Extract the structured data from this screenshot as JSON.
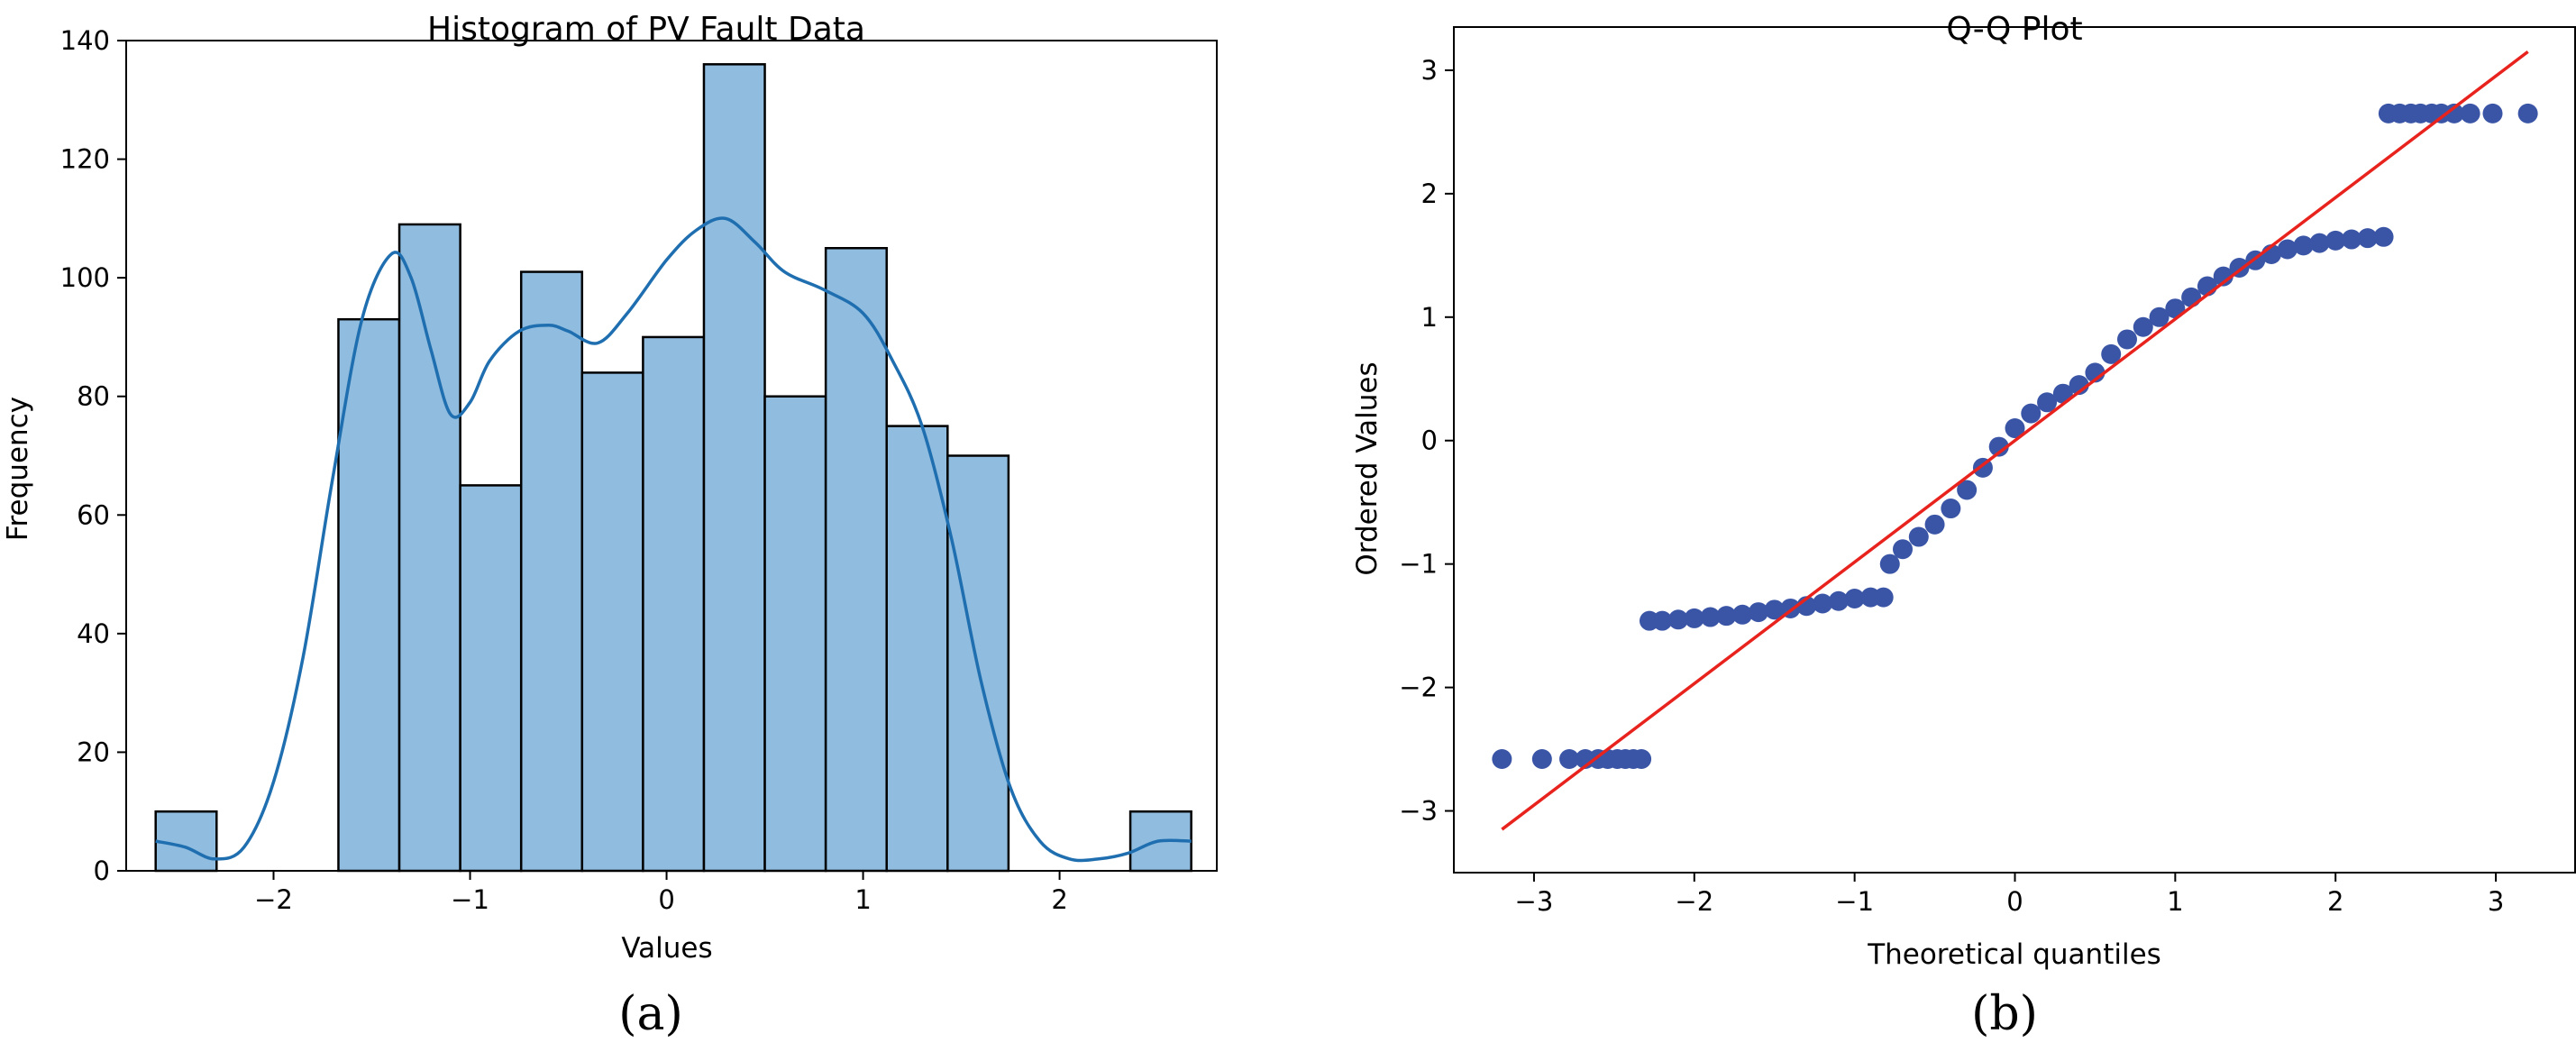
{
  "chart_data": [
    {
      "type": "bar",
      "panel_label": "(a)",
      "title": "Histogram of PV Fault Data",
      "xlabel": "Values",
      "ylabel": "Frequency",
      "xlim": [
        -2.75,
        2.8
      ],
      "ylim": [
        0,
        140
      ],
      "xticks": [
        -2,
        -1,
        0,
        1,
        2
      ],
      "xtick_labels": [
        "−2",
        "−1",
        "0",
        "1",
        "2"
      ],
      "yticks": [
        0,
        20,
        40,
        60,
        80,
        100,
        120,
        140
      ],
      "ytick_labels": [
        "0",
        "20",
        "40",
        "60",
        "80",
        "100",
        "120",
        "140"
      ],
      "bin_edges": [
        -2.6,
        -2.29,
        -1.98,
        -1.67,
        -1.36,
        -1.05,
        -0.74,
        -0.43,
        -0.12,
        0.19,
        0.5,
        0.81,
        1.12,
        1.43,
        1.74,
        2.05,
        2.36,
        2.67
      ],
      "values": [
        10,
        0,
        0,
        93,
        109,
        65,
        101,
        84,
        90,
        136,
        80,
        105,
        75,
        70,
        0,
        0,
        10
      ],
      "bar_color": "#8fbcdf",
      "bar_edge_color": "#000000",
      "kde": {
        "color": "#1f6fb0",
        "x": [
          -2.6,
          -2.45,
          -2.3,
          -2.15,
          -2.0,
          -1.85,
          -1.7,
          -1.55,
          -1.4,
          -1.3,
          -1.2,
          -1.1,
          -1.0,
          -0.9,
          -0.75,
          -0.6,
          -0.5,
          -0.35,
          -0.2,
          0.0,
          0.15,
          0.3,
          0.45,
          0.6,
          0.8,
          1.0,
          1.15,
          1.3,
          1.45,
          1.6,
          1.75,
          1.9,
          2.05,
          2.2,
          2.35,
          2.5,
          2.67
        ],
        "y": [
          5,
          4,
          2,
          4,
          15,
          36,
          66,
          93,
          104,
          100,
          88,
          77,
          79,
          86,
          91,
          92,
          91,
          89,
          94,
          103,
          108,
          110,
          106,
          101,
          98,
          94,
          86,
          75,
          56,
          32,
          14,
          5,
          2,
          2,
          3,
          5,
          5
        ]
      }
    },
    {
      "type": "scatter",
      "panel_label": "(b)",
      "title": "Q-Q Plot",
      "xlabel": "Theoretical quantiles",
      "ylabel": "Ordered Values",
      "xlim": [
        -3.5,
        3.5
      ],
      "ylim": [
        -3.5,
        3.35
      ],
      "xticks": [
        -3,
        -2,
        -1,
        0,
        1,
        2,
        3
      ],
      "xtick_labels": [
        "−3",
        "−2",
        "−1",
        "0",
        "1",
        "2",
        "3"
      ],
      "yticks": [
        -3,
        -2,
        -1,
        0,
        1,
        2,
        3
      ],
      "ytick_labels": [
        "−3",
        "−2",
        "−1",
        "0",
        "1",
        "2",
        "3"
      ],
      "point_color": "#3a55a6",
      "line_color": "#e8231e",
      "fit_line": {
        "x": [
          -3.2,
          3.2
        ],
        "y": [
          -3.15,
          3.15
        ]
      },
      "points": {
        "x": [
          -3.2,
          -2.95,
          -2.78,
          -2.68,
          -2.6,
          -2.54,
          -2.48,
          -2.43,
          -2.38,
          -2.33,
          -2.28,
          -2.2,
          -2.1,
          -2.0,
          -1.9,
          -1.8,
          -1.7,
          -1.6,
          -1.5,
          -1.4,
          -1.3,
          -1.2,
          -1.1,
          -1.0,
          -0.9,
          -0.82,
          -0.78,
          -0.7,
          -0.6,
          -0.5,
          -0.4,
          -0.3,
          -0.2,
          -0.1,
          0.0,
          0.1,
          0.2,
          0.3,
          0.4,
          0.5,
          0.6,
          0.7,
          0.8,
          0.9,
          1.0,
          1.1,
          1.2,
          1.3,
          1.4,
          1.5,
          1.6,
          1.7,
          1.8,
          1.9,
          2.0,
          2.1,
          2.2,
          2.3,
          2.33,
          2.4,
          2.47,
          2.53,
          2.6,
          2.66,
          2.74,
          2.84,
          2.98,
          3.2
        ],
        "y": [
          -2.58,
          -2.58,
          -2.58,
          -2.58,
          -2.58,
          -2.58,
          -2.58,
          -2.58,
          -2.58,
          -2.58,
          -1.46,
          -1.46,
          -1.45,
          -1.44,
          -1.43,
          -1.42,
          -1.41,
          -1.39,
          -1.37,
          -1.36,
          -1.34,
          -1.32,
          -1.3,
          -1.28,
          -1.27,
          -1.27,
          -1.0,
          -0.88,
          -0.78,
          -0.68,
          -0.55,
          -0.4,
          -0.22,
          -0.05,
          0.1,
          0.22,
          0.31,
          0.38,
          0.45,
          0.55,
          0.7,
          0.82,
          0.92,
          1.0,
          1.07,
          1.16,
          1.25,
          1.33,
          1.4,
          1.46,
          1.51,
          1.55,
          1.58,
          1.6,
          1.62,
          1.63,
          1.64,
          1.65,
          2.65,
          2.65,
          2.65,
          2.65,
          2.65,
          2.65,
          2.65,
          2.65,
          2.65,
          2.65
        ]
      }
    }
  ]
}
